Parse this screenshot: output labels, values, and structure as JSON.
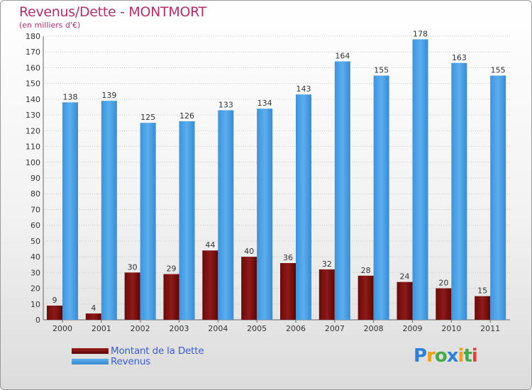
{
  "chart_data": {
    "type": "bar",
    "title": "Revenus/Dette - MONTMORT",
    "subtitle": "(en milliers d'€)",
    "categories": [
      "2000",
      "2001",
      "2002",
      "2003",
      "2004",
      "2005",
      "2006",
      "2007",
      "2008",
      "2009",
      "2010",
      "2011"
    ],
    "series": [
      {
        "name": "Montant de la Dette",
        "color": "#7a0c0c",
        "values": [
          9,
          4,
          30,
          29,
          44,
          40,
          36,
          32,
          28,
          24,
          20,
          15
        ]
      },
      {
        "name": "Revenus",
        "color": "#4a9fe2",
        "values": [
          138,
          139,
          125,
          126,
          133,
          134,
          143,
          164,
          155,
          178,
          163,
          155
        ]
      }
    ],
    "ylim": [
      0,
      180
    ],
    "yticks": [
      0,
      10,
      20,
      30,
      40,
      50,
      60,
      70,
      80,
      90,
      100,
      110,
      120,
      130,
      140,
      150,
      160,
      170,
      180
    ],
    "grid": true,
    "legend_position": "bottom-left"
  },
  "logo": {
    "letters": [
      "P",
      "r",
      "o",
      "x",
      "i",
      "t",
      "i"
    ],
    "colors": [
      "#2f7fd6",
      "#f0a020",
      "#49a84a",
      "#2f7fd6",
      "#f0a020",
      "#49a84a",
      "#e04040"
    ]
  }
}
